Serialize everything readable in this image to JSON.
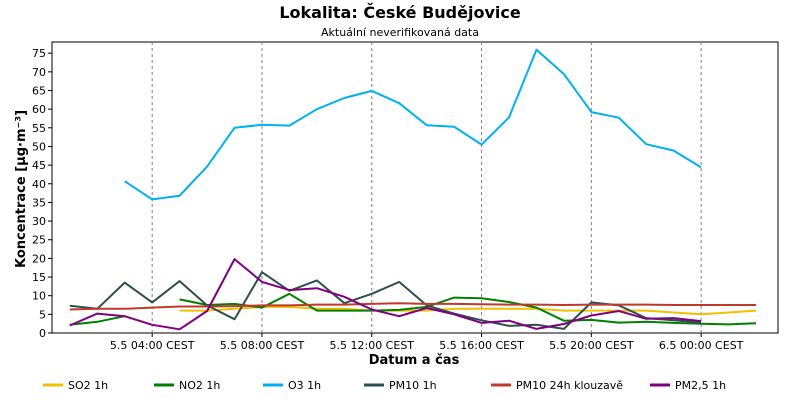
{
  "chart_data": {
    "type": "line",
    "title": "Lokalita: České Budějovice",
    "subtitle": "Aktuální neverifikovaná data",
    "xlabel": "Datum a čas",
    "ylabel": "Koncentrace [µg·m⁻³]",
    "ylim": [
      0,
      78
    ],
    "yticks": [
      0,
      5,
      10,
      15,
      20,
      25,
      30,
      35,
      40,
      45,
      50,
      55,
      60,
      65,
      70,
      75
    ],
    "x_hours": [
      1,
      2,
      3,
      4,
      5,
      6,
      7,
      8,
      9,
      10,
      11,
      12,
      13,
      14,
      15,
      16,
      17,
      18,
      19,
      20,
      21,
      22,
      23,
      24,
      25,
      26
    ],
    "xticks": [
      {
        "hour": 4,
        "label": "5.5 04:00 CEST"
      },
      {
        "hour": 8,
        "label": "5.5 08:00 CEST"
      },
      {
        "hour": 12,
        "label": "5.5 12:00 CEST"
      },
      {
        "hour": 16,
        "label": "5.5 16:00 CEST"
      },
      {
        "hour": 20,
        "label": "5.5 20:00 CEST"
      },
      {
        "hour": 24,
        "label": "6.5 00:00 CEST"
      }
    ],
    "grid": "vertical-dashed",
    "legend_position": "bottom",
    "series": [
      {
        "name": "SO2 1h",
        "color": "#f0c000",
        "values": [
          null,
          null,
          null,
          null,
          6,
          6,
          6.5,
          7,
          7,
          6.5,
          6.5,
          6,
          6,
          6,
          6.5,
          6.5,
          6.5,
          6.5,
          6,
          6,
          6,
          6,
          5.5,
          5,
          5.5,
          6
        ]
      },
      {
        "name": "NO2 1h",
        "color": "#008000",
        "values": [
          2.2,
          3,
          4.5,
          null,
          9,
          7.5,
          7.8,
          6.8,
          10.5,
          6,
          6,
          6,
          6.2,
          7,
          9.5,
          9.3,
          8.3,
          6.8,
          3.3,
          3.5,
          2.8,
          3,
          2.7,
          2.5,
          2.3,
          2.6
        ]
      },
      {
        "name": "O3 1h",
        "color": "#00b0f0",
        "values": [
          null,
          null,
          40.7,
          35.8,
          36.8,
          44.6,
          55,
          55.8,
          55.6,
          60,
          63,
          64.9,
          61.6,
          55.7,
          55.3,
          50.5,
          57.8,
          75.9,
          69.4,
          59.2,
          57.7,
          50.6,
          48.9,
          44.4,
          null,
          null
        ]
      },
      {
        "name": "PM10 1h",
        "color": "#2f4f4f",
        "values": [
          7.3,
          6.5,
          13.5,
          8.2,
          13.9,
          7.4,
          3.7,
          16.3,
          11.3,
          14.1,
          8,
          10.5,
          13.7,
          7.4,
          5.2,
          3.4,
          1.9,
          2.2,
          1.1,
          8.2,
          7.4,
          4,
          3.4,
          2.8,
          null,
          null
        ]
      },
      {
        "name": "PM10 24h klouzavě",
        "color": "#c0392b",
        "values": [
          6.3,
          6.5,
          6.5,
          6.8,
          7.1,
          7.1,
          7.2,
          7.4,
          7.4,
          7.6,
          7.6,
          7.8,
          8,
          7.8,
          7.8,
          7.7,
          7.6,
          7.6,
          7.5,
          7.6,
          7.6,
          7.6,
          7.5,
          7.5,
          7.5,
          7.5
        ]
      },
      {
        "name": "PM2,5 1h",
        "color": "#800080",
        "values": [
          2,
          5.2,
          4.5,
          2.2,
          1,
          5.9,
          19.8,
          13.7,
          11.5,
          12,
          9.7,
          6.3,
          4.5,
          6.7,
          5,
          2.7,
          3.3,
          1.1,
          2.4,
          4.7,
          5.9,
          3.8,
          4,
          3.2,
          null,
          null
        ]
      }
    ]
  }
}
